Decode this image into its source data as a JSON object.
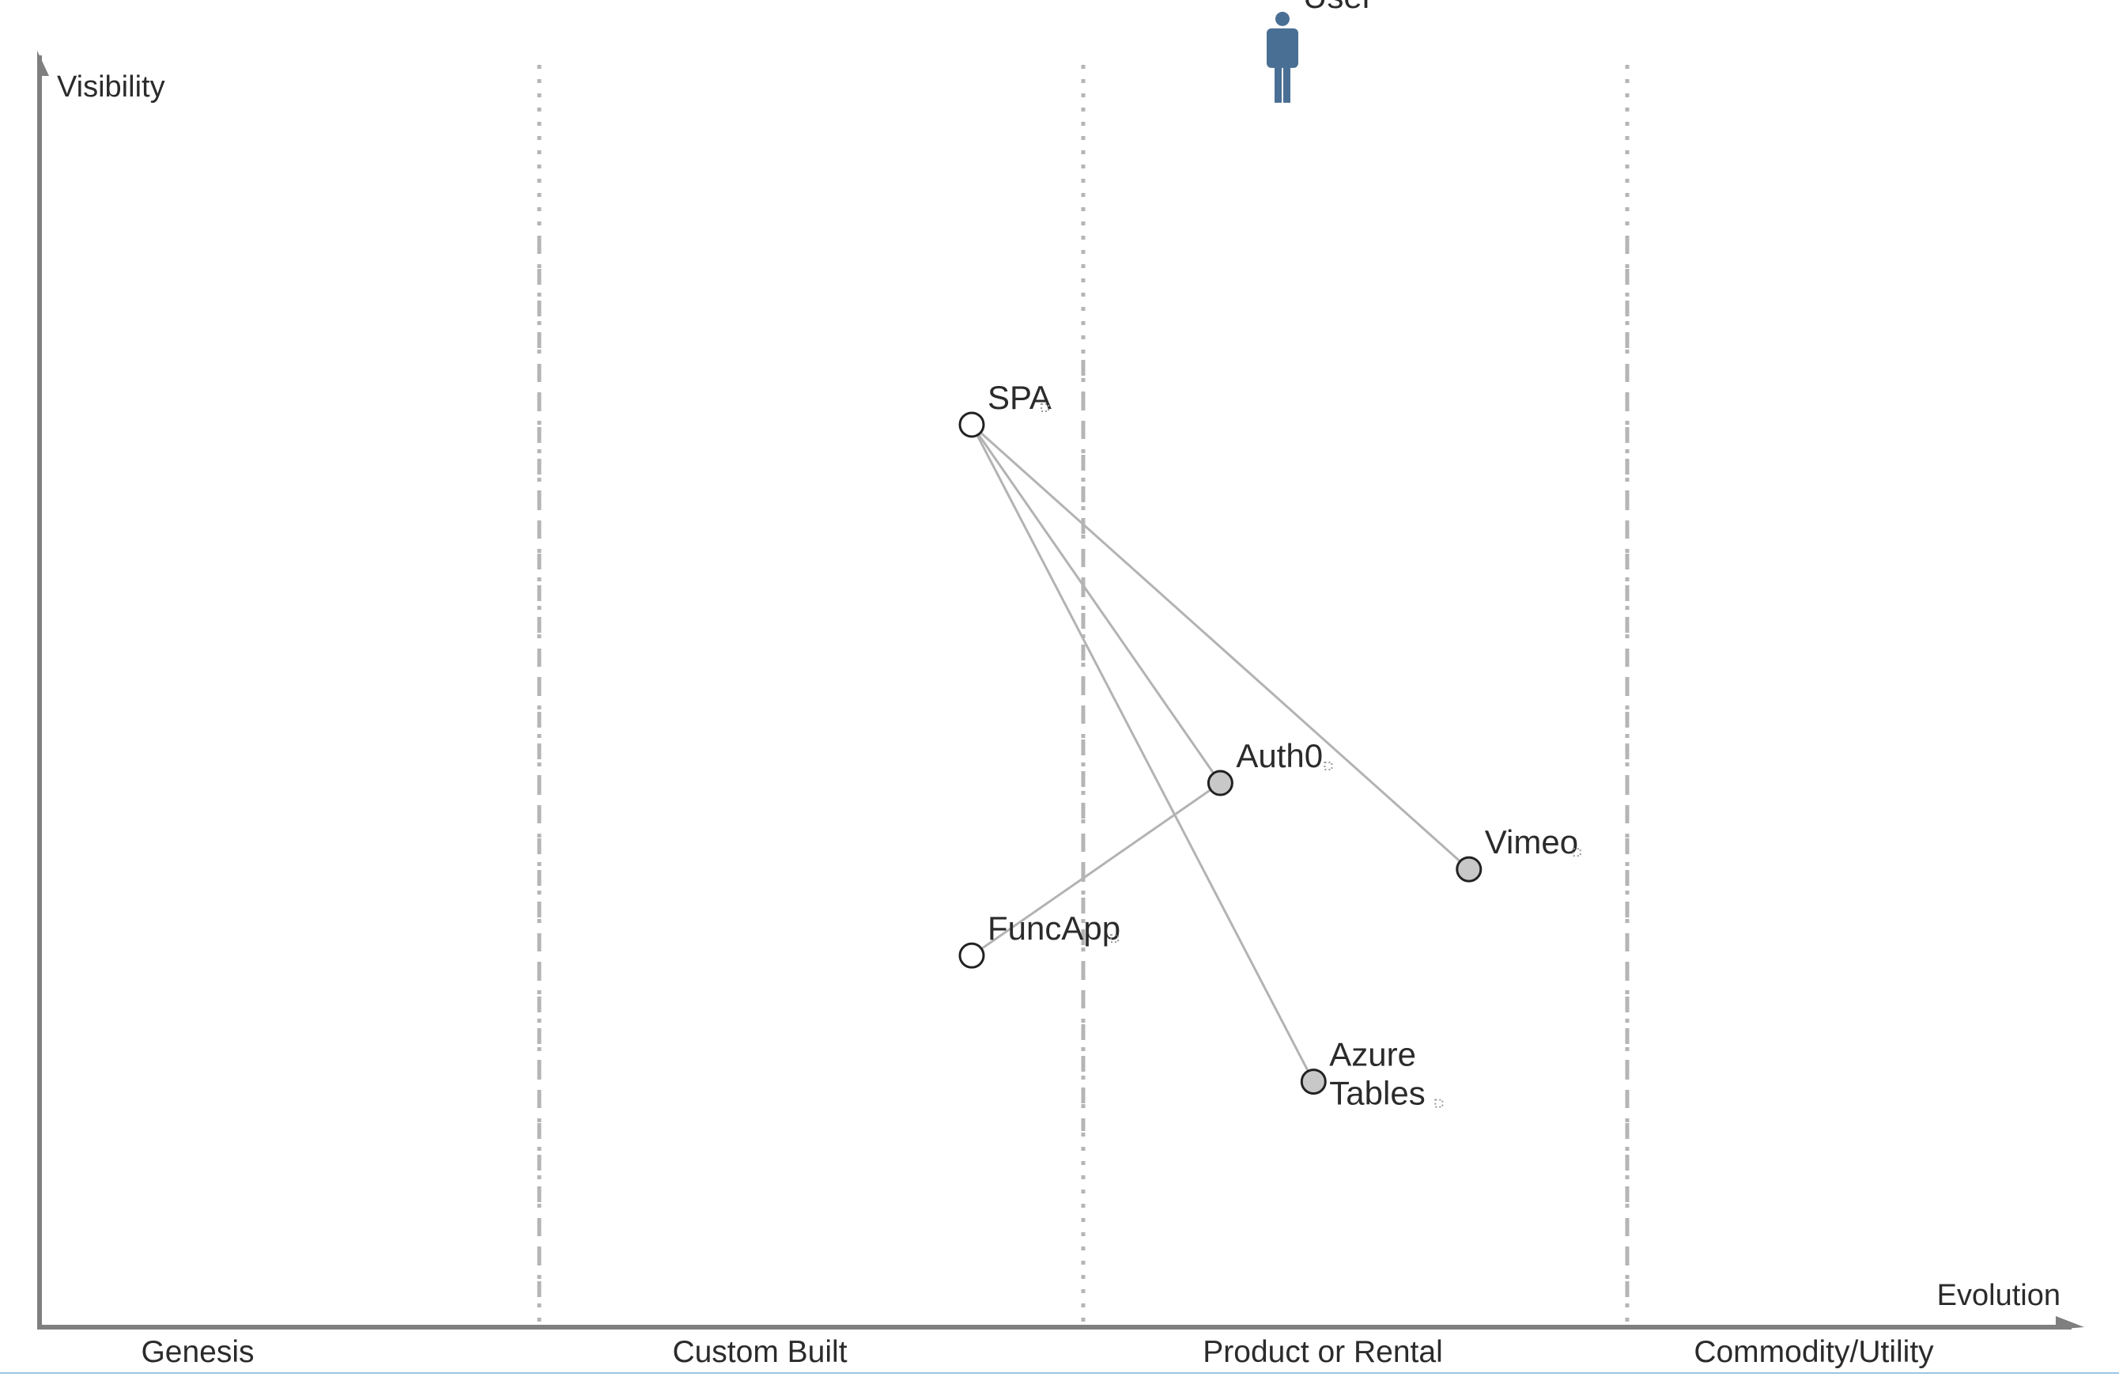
{
  "axes": {
    "y_label": "Visibility",
    "x_label": "Evolution"
  },
  "stages": [
    "Genesis",
    "Custom Built",
    "Product or Rental",
    "Commodity/Utility"
  ],
  "anchor": {
    "id": "user",
    "label": "User",
    "evolution": 0.6,
    "visibility": 0.95,
    "icon": "user-icon",
    "color": "#4a6f94"
  },
  "components": [
    {
      "id": "spa",
      "label": "SPA",
      "lines": [
        "SPA"
      ],
      "evolution": 0.45,
      "visibility": 0.68,
      "fill": "#ffffff"
    },
    {
      "id": "auth0",
      "label": "Auth0",
      "lines": [
        "Auth0"
      ],
      "evolution": 0.57,
      "visibility": 0.41,
      "fill": "#c8c8c8"
    },
    {
      "id": "vimeo",
      "label": "Vimeo",
      "lines": [
        "Vimeo"
      ],
      "evolution": 0.69,
      "visibility": 0.345,
      "fill": "#c8c8c8"
    },
    {
      "id": "funcapp",
      "label": "FuncApp",
      "lines": [
        "FuncApp"
      ],
      "evolution": 0.45,
      "visibility": 0.28,
      "fill": "#ffffff"
    },
    {
      "id": "azure-tables",
      "label": "Azure Tables",
      "lines": [
        "Azure",
        "Tables"
      ],
      "evolution": 0.615,
      "visibility": 0.185,
      "fill": "#c8c8c8"
    }
  ],
  "links": [
    {
      "from": "spa",
      "to": "auth0"
    },
    {
      "from": "spa",
      "to": "vimeo"
    },
    {
      "from": "spa",
      "to": "azure-tables"
    },
    {
      "from": "funcapp",
      "to": "auth0"
    }
  ],
  "colors": {
    "axis": "#7f7f7f",
    "stage_divider": "#b5b5b5",
    "link": "#b3b3b3",
    "node_stroke": "#222222",
    "bottom_rule": "#9cc6e4"
  }
}
